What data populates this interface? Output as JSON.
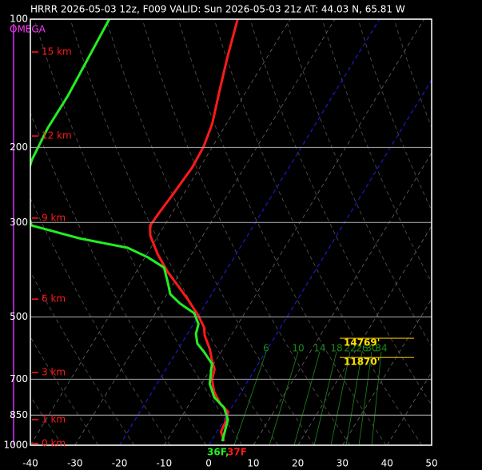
{
  "chart_data": {
    "type": "skewt",
    "title": "HRRR 2026-05-03 12z, F009  VALID: Sun 2026-05-03 21z  AT: 44.03 N, 65.81 W",
    "omega_label": "OMEGA",
    "xlim": [
      -40,
      50
    ],
    "xticks": [
      -40,
      -30,
      -20,
      -10,
      0,
      10,
      20,
      30,
      40,
      50
    ],
    "ylim": [
      1000,
      100
    ],
    "yticks": [
      100,
      200,
      300,
      500,
      700,
      850,
      1000
    ],
    "log_y": true,
    "grid": true,
    "highlight_isotherms": [
      -20,
      0
    ],
    "highlight_color": "#1a1acc",
    "series": [
      {
        "color": "#ff1a1a",
        "pressure": [
          978.6,
          929.2,
          870.9,
          834,
          799,
          749,
          702,
          663,
          630,
          595,
          553,
          530,
          497,
          455,
          421,
          392,
          356,
          322,
          305,
          283,
          260,
          223,
          199,
          176,
          146,
          122,
          100
        ],
        "values": [
          2.9,
          0.9,
          0.5,
          -0.3,
          -3.1,
          -6.1,
          -8.2,
          -9.1,
          -11.0,
          -12.9,
          -15.9,
          -17.1,
          -20.0,
          -24.6,
          -28.9,
          -32.9,
          -37.6,
          -41.8,
          -43.2,
          -42.9,
          -42.4,
          -41.7,
          -42.0,
          -43.2,
          -46.2,
          -49.0,
          -51.8
        ]
      },
      {
        "color": "#22ee22",
        "pressure": [
          978.6,
          870.9,
          816,
          772,
          717,
          644,
          603,
          578,
          548,
          519,
          490,
          465,
          442,
          418,
          383,
          362,
          344,
          327,
          305,
          254,
          214,
          180,
          151,
          100
        ],
        "values": [
          2.5,
          0.8,
          -1.7,
          -5.3,
          -8.2,
          -10.4,
          -13.9,
          -16.4,
          -18.1,
          -18.9,
          -21.3,
          -25.8,
          -29.3,
          -31.2,
          -34.3,
          -39.4,
          -45.2,
          -57.2,
          -69.8,
          -76.5,
          -78.7,
          -79.5,
          -79.4,
          -80.6
        ]
      }
    ],
    "heights": [
      {
        "label": "15 km",
        "pressure": 119.4
      },
      {
        "label": "12 km",
        "pressure": 188
      },
      {
        "label": "9 km",
        "pressure": 293
      },
      {
        "label": "6 km",
        "pressure": 454
      },
      {
        "label": "3 km",
        "pressure": 675
      },
      {
        "label": "1 km",
        "pressure": 871
      },
      {
        "label": "0 km",
        "pressure": 991
      }
    ],
    "annotations": [
      {
        "text": "14769'",
        "pressure": 573
      },
      {
        "text": "11870'",
        "pressure": 636
      }
    ],
    "mixing_ratio_labels": [
      6,
      10,
      14,
      18,
      22,
      26,
      30,
      34
    ],
    "surface_labels": [
      "36F,",
      "37F"
    ]
  }
}
